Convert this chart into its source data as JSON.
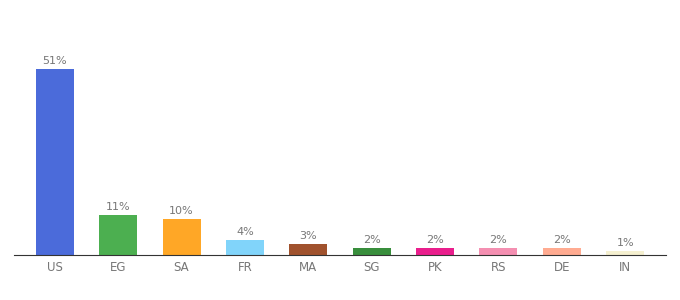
{
  "categories": [
    "US",
    "EG",
    "SA",
    "FR",
    "MA",
    "SG",
    "PK",
    "RS",
    "DE",
    "IN"
  ],
  "values": [
    51,
    11,
    10,
    4,
    3,
    2,
    2,
    2,
    2,
    1
  ],
  "bar_colors": [
    "#4b6bda",
    "#4caf50",
    "#ffa726",
    "#81d4fa",
    "#a0522d",
    "#388e3c",
    "#e91e8c",
    "#f48fb1",
    "#ffab91",
    "#f5f0d0"
  ],
  "labels": [
    "51%",
    "11%",
    "10%",
    "4%",
    "3%",
    "2%",
    "2%",
    "2%",
    "2%",
    "1%"
  ],
  "ylim": [
    0,
    60
  ],
  "background_color": "#ffffff",
  "bar_width": 0.6,
  "label_color": "#777777",
  "tick_color": "#777777",
  "bottom_spine_color": "#333333"
}
